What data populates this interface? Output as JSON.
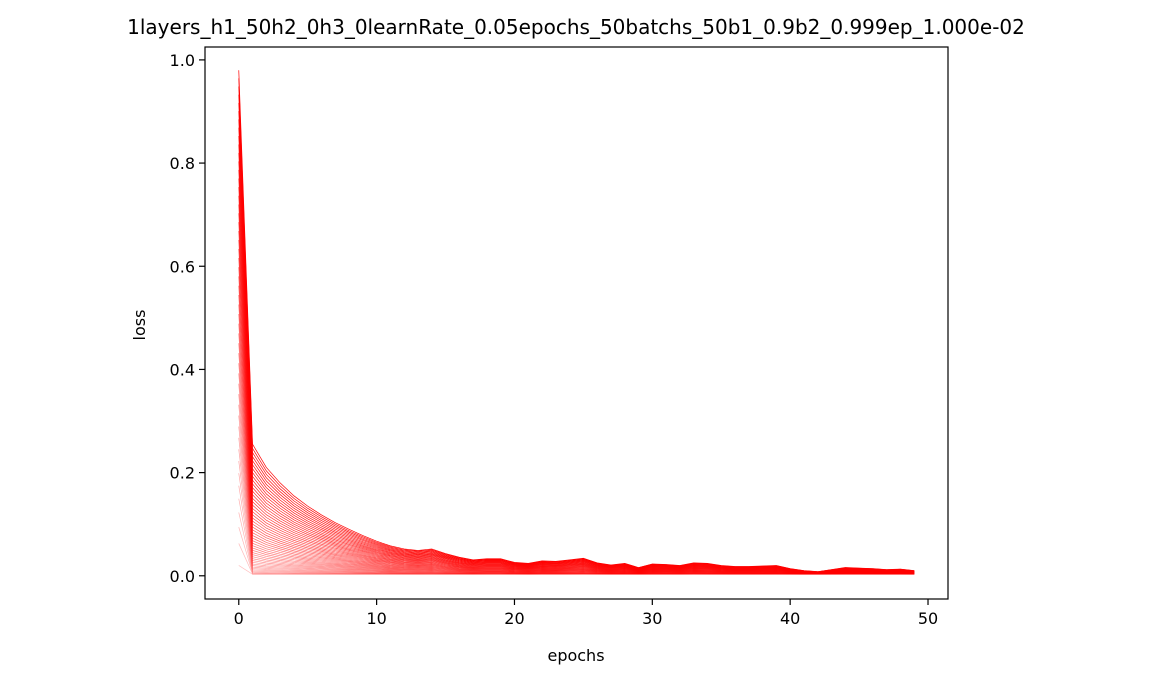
{
  "chart_data": {
    "type": "line",
    "title": "1layers_h1_50h2_0h3_0learnRate_0.05epochs_50batchs_50b1_0.9b2_0.999ep_1.000e-02",
    "xlabel": "epochs",
    "ylabel": "loss",
    "xlim": [
      -2.45,
      51.45
    ],
    "ylim": [
      -0.045,
      1.025
    ],
    "xticks": [
      0,
      10,
      20,
      30,
      40,
      50
    ],
    "yticks": [
      0.0,
      0.2,
      0.4,
      0.6,
      0.8,
      1.0
    ],
    "xtick_labels": [
      "0",
      "10",
      "20",
      "30",
      "40",
      "50"
    ],
    "ytick_labels": [
      "0.0",
      "0.2",
      "0.4",
      "0.6",
      "0.8",
      "1.0"
    ],
    "grid": false,
    "legend": "none",
    "line_color": "#ff0000",
    "series_count": 50,
    "x": [
      0,
      1,
      2,
      3,
      4,
      5,
      6,
      7,
      8,
      9,
      10,
      11,
      12,
      13,
      14,
      15,
      16,
      17,
      18,
      19,
      20,
      21,
      22,
      23,
      24,
      25,
      26,
      27,
      28,
      29,
      30,
      31,
      32,
      33,
      34,
      35,
      36,
      37,
      38,
      39,
      40,
      41,
      42,
      43,
      44,
      45,
      46,
      47,
      48,
      49
    ],
    "envelope_upper": [
      0.98,
      0.255,
      0.21,
      0.18,
      0.155,
      0.135,
      0.118,
      0.103,
      0.09,
      0.078,
      0.067,
      0.058,
      0.052,
      0.049,
      0.052,
      0.043,
      0.036,
      0.031,
      0.033,
      0.033,
      0.026,
      0.024,
      0.029,
      0.028,
      0.031,
      0.034,
      0.025,
      0.021,
      0.024,
      0.016,
      0.023,
      0.022,
      0.02,
      0.025,
      0.024,
      0.02,
      0.018,
      0.018,
      0.019,
      0.02,
      0.014,
      0.01,
      0.008,
      0.012,
      0.016,
      0.015,
      0.014,
      0.012,
      0.013,
      0.01
    ],
    "envelope_lower": [
      0.02,
      0.003,
      0.003,
      0.003,
      0.003,
      0.003,
      0.003,
      0.003,
      0.003,
      0.003,
      0.003,
      0.003,
      0.003,
      0.003,
      0.003,
      0.003,
      0.003,
      0.003,
      0.003,
      0.003,
      0.003,
      0.003,
      0.003,
      0.003,
      0.003,
      0.003,
      0.003,
      0.003,
      0.003,
      0.003,
      0.003,
      0.003,
      0.003,
      0.003,
      0.003,
      0.003,
      0.003,
      0.003,
      0.003,
      0.003,
      0.003,
      0.003,
      0.003,
      0.003,
      0.003,
      0.003,
      0.003,
      0.003,
      0.003,
      0.003
    ]
  }
}
